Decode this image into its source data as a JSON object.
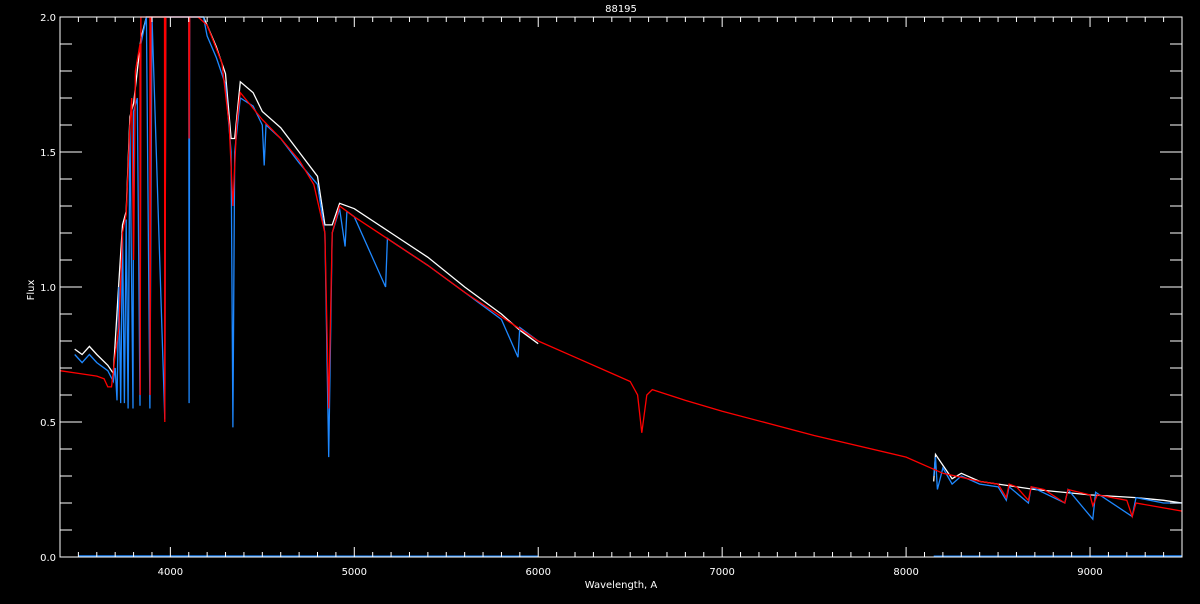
{
  "chart_data": {
    "type": "line",
    "title": "88195",
    "xlabel": "Wavelength, A",
    "ylabel": "Flux",
    "xlim": [
      3400,
      9500
    ],
    "ylim": [
      0.0,
      2.0
    ],
    "xticks": [
      4000,
      5000,
      6000,
      7000,
      8000,
      9000
    ],
    "xtick_labels": [
      "4000",
      "5000",
      "6000",
      "7000",
      "8000",
      "9000"
    ],
    "yticks": [
      0.0,
      0.5,
      1.0,
      1.5,
      2.0
    ],
    "ytick_labels": [
      "0.0",
      "0.5",
      "1.0",
      "1.5",
      "2.0"
    ],
    "grid": false,
    "background": "#000000",
    "series": [
      {
        "color": "#ffffff",
        "points": [
          [
            3480,
            0.77
          ],
          [
            3520,
            0.75
          ],
          [
            3560,
            0.78
          ],
          [
            3600,
            0.75
          ],
          [
            3660,
            0.71
          ],
          [
            3690,
            0.68
          ],
          [
            3720,
            1.02
          ],
          [
            3740,
            1.23
          ],
          [
            3760,
            1.28
          ],
          [
            3780,
            1.63
          ],
          [
            3800,
            1.68
          ],
          [
            3840,
            1.92
          ],
          [
            3870,
            2.0
          ],
          [
            4180,
            2.0
          ],
          [
            4200,
            1.97
          ],
          [
            4250,
            1.89
          ],
          [
            4300,
            1.79
          ],
          [
            4330,
            1.55
          ],
          [
            4350,
            1.55
          ],
          [
            4380,
            1.76
          ],
          [
            4450,
            1.72
          ],
          [
            4500,
            1.65
          ],
          [
            4600,
            1.59
          ],
          [
            4700,
            1.5
          ],
          [
            4800,
            1.41
          ],
          [
            4840,
            1.23
          ],
          [
            4880,
            1.23
          ],
          [
            4920,
            1.31
          ],
          [
            5000,
            1.29
          ],
          [
            5200,
            1.2
          ],
          [
            5400,
            1.11
          ],
          [
            5600,
            1.0
          ],
          [
            5800,
            0.9
          ],
          [
            5900,
            0.84
          ],
          [
            6000,
            0.79
          ]
        ]
      },
      {
        "color": "#ffffff",
        "points": [
          [
            8150,
            0.28
          ],
          [
            8160,
            0.38
          ],
          [
            8200,
            0.34
          ],
          [
            8250,
            0.29
          ],
          [
            8300,
            0.31
          ],
          [
            8400,
            0.28
          ],
          [
            8500,
            0.27
          ],
          [
            8700,
            0.25
          ],
          [
            9000,
            0.23
          ],
          [
            9250,
            0.22
          ],
          [
            9400,
            0.21
          ],
          [
            9500,
            0.2
          ]
        ]
      },
      {
        "color": "#1e88ff",
        "points": [
          [
            3480,
            0.75
          ],
          [
            3520,
            0.72
          ],
          [
            3560,
            0.75
          ],
          [
            3600,
            0.72
          ],
          [
            3660,
            0.69
          ],
          [
            3690,
            0.65
          ],
          [
            3700,
            0.7
          ],
          [
            3710,
            0.58
          ],
          [
            3720,
            1.0
          ],
          [
            3730,
            0.57
          ],
          [
            3740,
            1.2
          ],
          [
            3750,
            0.57
          ],
          [
            3760,
            1.25
          ],
          [
            3770,
            0.55
          ],
          [
            3780,
            1.6
          ],
          [
            3797,
            0.55
          ],
          [
            3800,
            1.65
          ],
          [
            3820,
            1.7
          ],
          [
            3835,
            0.56
          ],
          [
            3840,
            1.9
          ],
          [
            3870,
            2.0
          ],
          [
            3889,
            0.55
          ],
          [
            3900,
            2.0
          ],
          [
            3970,
            0.51
          ],
          [
            3975,
            2.0
          ],
          [
            4100,
            2.0
          ],
          [
            4102,
            0.57
          ],
          [
            4105,
            2.0
          ],
          [
            4180,
            2.0
          ],
          [
            4200,
            1.93
          ],
          [
            4250,
            1.85
          ],
          [
            4300,
            1.75
          ],
          [
            4330,
            1.5
          ],
          [
            4340,
            0.48
          ],
          [
            4350,
            1.5
          ],
          [
            4380,
            1.7
          ],
          [
            4450,
            1.67
          ],
          [
            4500,
            1.6
          ],
          [
            4510,
            1.45
          ],
          [
            4520,
            1.6
          ],
          [
            4600,
            1.55
          ],
          [
            4700,
            1.46
          ],
          [
            4800,
            1.38
          ],
          [
            4840,
            1.2
          ],
          [
            4861,
            0.37
          ],
          [
            4880,
            1.2
          ],
          [
            4920,
            1.29
          ],
          [
            4950,
            1.15
          ],
          [
            4960,
            1.28
          ],
          [
            5000,
            1.26
          ],
          [
            5170,
            1.0
          ],
          [
            5180,
            1.18
          ],
          [
            5200,
            1.17
          ],
          [
            5400,
            1.08
          ],
          [
            5600,
            0.98
          ],
          [
            5800,
            0.88
          ],
          [
            5890,
            0.74
          ],
          [
            5900,
            0.85
          ],
          [
            6000,
            0.8
          ]
        ]
      },
      {
        "color": "#1e88ff",
        "points": [
          [
            8150,
            0.3
          ],
          [
            8160,
            0.37
          ],
          [
            8170,
            0.25
          ],
          [
            8200,
            0.33
          ],
          [
            8250,
            0.27
          ],
          [
            8300,
            0.3
          ],
          [
            8400,
            0.27
          ],
          [
            8500,
            0.26
          ],
          [
            8545,
            0.21
          ],
          [
            8560,
            0.26
          ],
          [
            8665,
            0.2
          ],
          [
            8680,
            0.26
          ],
          [
            8863,
            0.2
          ],
          [
            8880,
            0.25
          ],
          [
            9015,
            0.14
          ],
          [
            9030,
            0.24
          ],
          [
            9229,
            0.15
          ],
          [
            9250,
            0.22
          ],
          [
            9400,
            0.2
          ],
          [
            9500,
            0.2
          ]
        ]
      },
      {
        "color": "#1e88ff",
        "points": [
          [
            3500,
            0.004
          ],
          [
            6000,
            0.003
          ]
        ]
      },
      {
        "color": "#1e88ff",
        "points": [
          [
            8150,
            0.003
          ],
          [
            9500,
            0.004
          ]
        ]
      },
      {
        "color": "#ff0000",
        "points": [
          [
            3400,
            0.69
          ],
          [
            3500,
            0.68
          ],
          [
            3600,
            0.67
          ],
          [
            3640,
            0.66
          ],
          [
            3660,
            0.63
          ],
          [
            3680,
            0.63
          ],
          [
            3700,
            0.75
          ],
          [
            3720,
            0.85
          ],
          [
            3740,
            1.2
          ],
          [
            3760,
            1.27
          ],
          [
            3780,
            1.6
          ],
          [
            3790,
            1.7
          ],
          [
            3800,
            1.1
          ],
          [
            3810,
            1.8
          ],
          [
            3835,
            1.9
          ],
          [
            3836,
            0.6
          ],
          [
            3840,
            2.0
          ],
          [
            3889,
            2.0
          ],
          [
            3890,
            0.6
          ],
          [
            3895,
            2.0
          ],
          [
            3968,
            2.0
          ],
          [
            3970,
            0.5
          ],
          [
            3975,
            2.0
          ],
          [
            4100,
            2.0
          ],
          [
            4102,
            1.55
          ],
          [
            4105,
            2.0
          ],
          [
            4150,
            2.0
          ],
          [
            4200,
            1.97
          ],
          [
            4280,
            1.83
          ],
          [
            4320,
            1.6
          ],
          [
            4340,
            1.3
          ],
          [
            4360,
            1.6
          ],
          [
            4380,
            1.72
          ],
          [
            4500,
            1.62
          ],
          [
            4600,
            1.55
          ],
          [
            4700,
            1.47
          ],
          [
            4780,
            1.38
          ],
          [
            4840,
            1.2
          ],
          [
            4861,
            0.55
          ],
          [
            4880,
            1.2
          ],
          [
            4920,
            1.3
          ],
          [
            5000,
            1.26
          ],
          [
            5200,
            1.17
          ],
          [
            5400,
            1.08
          ],
          [
            5600,
            0.98
          ],
          [
            5800,
            0.89
          ],
          [
            6000,
            0.8
          ],
          [
            6200,
            0.74
          ],
          [
            6400,
            0.68
          ],
          [
            6500,
            0.65
          ],
          [
            6540,
            0.6
          ],
          [
            6563,
            0.46
          ],
          [
            6590,
            0.6
          ],
          [
            6620,
            0.62
          ],
          [
            6800,
            0.58
          ],
          [
            7000,
            0.54
          ],
          [
            7500,
            0.45
          ],
          [
            8000,
            0.37
          ],
          [
            8200,
            0.31
          ],
          [
            8400,
            0.28
          ],
          [
            8500,
            0.27
          ],
          [
            8545,
            0.22
          ],
          [
            8560,
            0.27
          ],
          [
            8600,
            0.26
          ],
          [
            8665,
            0.21
          ],
          [
            8680,
            0.26
          ],
          [
            8750,
            0.25
          ],
          [
            8863,
            0.2
          ],
          [
            8880,
            0.25
          ],
          [
            9000,
            0.23
          ],
          [
            9015,
            0.19
          ],
          [
            9040,
            0.23
          ],
          [
            9200,
            0.21
          ],
          [
            9229,
            0.15
          ],
          [
            9250,
            0.2
          ],
          [
            9500,
            0.17
          ]
        ]
      }
    ]
  }
}
